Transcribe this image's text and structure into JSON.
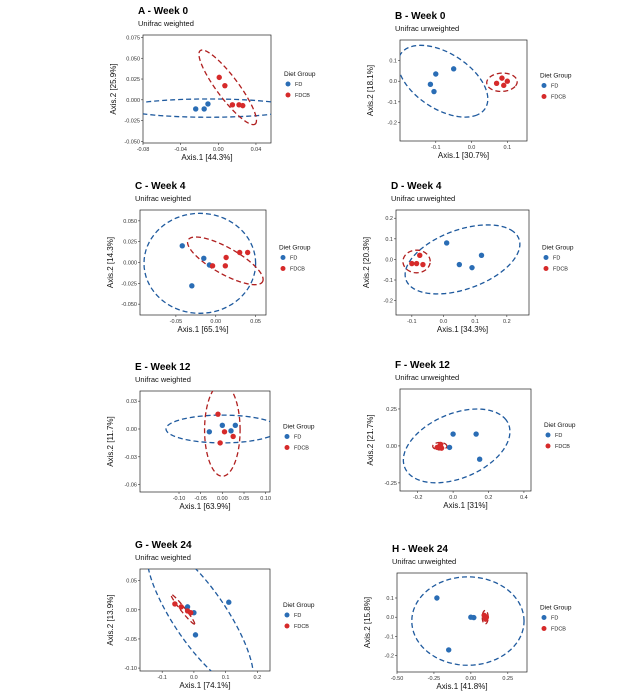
{
  "colors": {
    "FD": "#2a6db5",
    "FDCB": "#d62a2a",
    "FD_ellipse": "#1f5a9e",
    "FDCB_ellipse": "#b01f1f"
  },
  "chart_data": [
    {
      "type": "scatter",
      "title": "A - Week 0",
      "subtitle": "Unifrac weighted",
      "xlabel": "Axis.1  [44.3%]",
      "ylabel": "Axis.2  [25.9%]",
      "xlim": [
        -0.08,
        0.056
      ],
      "ylim": [
        -0.052,
        0.078
      ],
      "xticks": [
        -0.08,
        -0.04,
        0.0,
        0.04
      ],
      "xtick_labels": [
        "-0.08",
        "-0.04",
        "0.00",
        "0.04"
      ],
      "yticks": [
        -0.05,
        -0.025,
        0.0,
        0.025,
        0.05,
        0.075
      ],
      "ytick_labels": [
        "-0.050",
        "-0.025",
        "0.000",
        "0.025",
        "0.050",
        "0.075"
      ],
      "legend": {
        "title": "Diet Group",
        "items": [
          "FD",
          "FDCB"
        ],
        "position": "right"
      },
      "series": [
        {
          "name": "FD",
          "points": [
            [
              -0.024,
              -0.011
            ],
            [
              -0.015,
              -0.011
            ],
            [
              -0.011,
              -0.005
            ]
          ],
          "ellipse": {
            "cx": -0.01,
            "cy": -0.01,
            "rx": 0.09,
            "ry": 0.011,
            "angle": 0
          }
        },
        {
          "name": "FDCB",
          "points": [
            [
              0.001,
              0.027
            ],
            [
              0.007,
              0.017
            ],
            [
              0.015,
              -0.006
            ],
            [
              0.022,
              -0.006
            ],
            [
              0.026,
              -0.007
            ]
          ],
          "ellipse": {
            "cx": 0.01,
            "cy": 0.015,
            "rx": 0.053,
            "ry": 0.012,
            "angle": -57
          }
        }
      ]
    },
    {
      "type": "scatter",
      "title": "B - Week 0",
      "subtitle": "Unifrac unweighted",
      "xlabel": "Axis.1  [30.7%]",
      "ylabel": "Axis.2  [18.1%]",
      "xlim": [
        -0.2,
        0.155
      ],
      "ylim": [
        -0.29,
        0.2
      ],
      "xticks": [
        -0.1,
        0.0,
        0.1
      ],
      "xtick_labels": [
        "-0.1",
        "0.0",
        "0.1"
      ],
      "yticks": [
        -0.2,
        -0.1,
        0.0,
        0.1
      ],
      "ytick_labels": [
        "-0.2",
        "-0.1",
        "0.0",
        "0.1"
      ],
      "legend": {
        "title": "Diet Group",
        "items": [
          "FD",
          "FDCB"
        ],
        "position": "right"
      },
      "series": [
        {
          "name": "FD",
          "points": [
            [
              -0.1,
              0.035
            ],
            [
              -0.115,
              -0.015
            ],
            [
              -0.05,
              0.06
            ],
            [
              -0.105,
              -0.05
            ]
          ],
          "ellipse": {
            "cx": -0.08,
            "cy": 0.0,
            "rx": 0.19,
            "ry": 0.1,
            "angle": -62
          }
        },
        {
          "name": "FDCB",
          "points": [
            [
              0.07,
              -0.01
            ],
            [
              0.085,
              0.015
            ],
            [
              0.09,
              -0.02
            ],
            [
              0.1,
              0.0
            ]
          ],
          "ellipse": {
            "cx": 0.085,
            "cy": -0.005,
            "rx": 0.042,
            "ry": 0.045,
            "angle": -25
          }
        }
      ]
    },
    {
      "type": "scatter",
      "title": "C - Week 4",
      "subtitle": "Unifrac weighted",
      "xlabel": "Axis.1  [65.1%]",
      "ylabel": "Axis.2  [14.3%]",
      "xlim": [
        -0.095,
        0.063
      ],
      "ylim": [
        -0.063,
        0.063
      ],
      "xticks": [
        -0.05,
        0.0,
        0.05
      ],
      "xtick_labels": [
        "-0.05",
        "0.00",
        "0.05"
      ],
      "yticks": [
        -0.05,
        -0.025,
        0.0,
        0.025,
        0.05
      ],
      "ytick_labels": [
        "-0.050",
        "-0.025",
        "0.000",
        "0.025",
        "0.050"
      ],
      "legend": {
        "title": "Diet Group",
        "items": [
          "FD",
          "FDCB"
        ],
        "position": "right"
      },
      "series": [
        {
          "name": "FD",
          "points": [
            [
              -0.042,
              0.02
            ],
            [
              -0.015,
              0.005
            ],
            [
              -0.008,
              -0.003
            ],
            [
              -0.03,
              -0.028
            ]
          ],
          "ellipse": {
            "cx": -0.02,
            "cy": -0.001,
            "rx": 0.07,
            "ry": 0.06,
            "angle": 0
          }
        },
        {
          "name": "FDCB",
          "points": [
            [
              -0.004,
              -0.004
            ],
            [
              0.012,
              -0.004
            ],
            [
              0.013,
              0.006
            ],
            [
              0.03,
              0.012
            ],
            [
              0.04,
              0.012
            ]
          ],
          "ellipse": {
            "cx": 0.012,
            "cy": 0.002,
            "rx": 0.053,
            "ry": 0.016,
            "angle": -28
          }
        }
      ]
    },
    {
      "type": "scatter",
      "title": "D - Week 4",
      "subtitle": "Unifrac unweighted",
      "xlabel": "Axis.1  [34.3%]",
      "ylabel": "Axis.2  [20.3%]",
      "xlim": [
        -0.15,
        0.27
      ],
      "ylim": [
        -0.27,
        0.24
      ],
      "xticks": [
        -0.1,
        0.0,
        0.1,
        0.2
      ],
      "xtick_labels": [
        "-0.1",
        "0.0",
        "0.1",
        "0.2"
      ],
      "yticks": [
        -0.2,
        -0.1,
        0.0,
        0.1,
        0.2
      ],
      "ytick_labels": [
        "-0.2",
        "-0.1",
        "0.0",
        "0.1",
        "0.2"
      ],
      "legend": {
        "title": "Diet Group",
        "items": [
          "FD",
          "FDCB"
        ],
        "position": "right"
      },
      "series": [
        {
          "name": "FD",
          "points": [
            [
              0.01,
              0.08
            ],
            [
              0.05,
              -0.025
            ],
            [
              0.09,
              -0.04
            ],
            [
              0.12,
              0.02
            ]
          ],
          "ellipse": {
            "cx": 0.06,
            "cy": 0.0,
            "rx": 0.21,
            "ry": 0.13,
            "angle": 40
          }
        },
        {
          "name": "FDCB",
          "points": [
            [
              -0.1,
              -0.02
            ],
            [
              -0.085,
              -0.02
            ],
            [
              -0.075,
              0.02
            ],
            [
              -0.065,
              -0.025
            ]
          ],
          "ellipse": {
            "cx": -0.085,
            "cy": -0.01,
            "rx": 0.043,
            "ry": 0.055,
            "angle": 0
          }
        }
      ]
    },
    {
      "type": "scatter",
      "title": "E - Week 12",
      "subtitle": "Unifrac weighted",
      "xlabel": "Axis.1  [63.9%]",
      "ylabel": "Axis.2  [11.7%]",
      "xlim": [
        -0.19,
        0.11
      ],
      "ylim": [
        -0.068,
        0.041
      ],
      "xticks": [
        -0.1,
        -0.05,
        0.0,
        0.05,
        0.1
      ],
      "xtick_labels": [
        "-0.10",
        "-0.05",
        "0.00",
        "0.05",
        "0.10"
      ],
      "yticks": [
        -0.06,
        -0.03,
        0.0,
        0.03
      ],
      "ytick_labels": [
        "-0.06",
        "-0.03",
        "0.00",
        "0.03"
      ],
      "legend": {
        "title": "Diet Group",
        "items": [
          "FD",
          "FDCB"
        ],
        "position": "right"
      },
      "series": [
        {
          "name": "FD",
          "points": [
            [
              -0.03,
              -0.003
            ],
            [
              0.0,
              0.004
            ],
            [
              0.03,
              0.004
            ],
            [
              0.02,
              -0.002
            ]
          ],
          "ellipse": {
            "cx": 0.0,
            "cy": 0.0,
            "rx": 0.13,
            "ry": 0.015,
            "angle": 0
          }
        },
        {
          "name": "FDCB",
          "points": [
            [
              -0.01,
              0.016
            ],
            [
              -0.005,
              -0.015
            ],
            [
              0.005,
              -0.003
            ],
            [
              0.025,
              -0.008
            ]
          ],
          "ellipse": {
            "cx": 0.0,
            "cy": -0.001,
            "rx": 0.041,
            "ry": 0.05,
            "angle": 0
          }
        }
      ]
    },
    {
      "type": "scatter",
      "title": "F - Week 12",
      "subtitle": "Unifrac unweighted",
      "xlabel": "Axis.1  [31%]",
      "ylabel": "Axis.2  [21.7%]",
      "xlim": [
        -0.3,
        0.44
      ],
      "ylim": [
        -0.305,
        0.385
      ],
      "xticks": [
        -0.2,
        0.0,
        0.2,
        0.4
      ],
      "xtick_labels": [
        "-0.2",
        "0.0",
        "0.2",
        "0.4"
      ],
      "yticks": [
        -0.25,
        0.0,
        0.25
      ],
      "ytick_labels": [
        "-0.25",
        "0.00",
        "0.25"
      ],
      "legend": {
        "title": "Diet Group",
        "items": [
          "FD",
          "FDCB"
        ],
        "position": "right"
      },
      "series": [
        {
          "name": "FD",
          "points": [
            [
              0.0,
              0.08
            ],
            [
              0.13,
              0.08
            ],
            [
              -0.02,
              -0.01
            ],
            [
              0.15,
              -0.09
            ]
          ],
          "ellipse": {
            "cx": 0.02,
            "cy": 0.0,
            "rx": 0.33,
            "ry": 0.21,
            "angle": 32
          }
        },
        {
          "name": "FDCB",
          "points": [
            [
              -0.09,
              -0.01
            ],
            [
              -0.075,
              0.0
            ],
            [
              -0.065,
              -0.015
            ],
            [
              -0.07,
              0.01
            ]
          ],
          "ellipse": {
            "cx": -0.075,
            "cy": -0.002,
            "rx": 0.04,
            "ry": 0.025,
            "angle": 0
          }
        }
      ]
    },
    {
      "type": "scatter",
      "title": "G - Week 24",
      "subtitle": "Unifrac weighted",
      "xlabel": "Axis.1  [74.1%]",
      "ylabel": "Axis.2  [13.9%]",
      "xlim": [
        -0.17,
        0.24
      ],
      "ylim": [
        -0.105,
        0.07
      ],
      "xticks": [
        -0.1,
        0.0,
        0.1,
        0.2
      ],
      "xtick_labels": [
        "-0.1",
        "0.0",
        "0.1",
        "0.2"
      ],
      "yticks": [
        -0.1,
        -0.05,
        0.0,
        0.05
      ],
      "ytick_labels": [
        "-0.10",
        "-0.05",
        "0.00",
        "0.05"
      ],
      "legend": {
        "title": "Diet Group",
        "items": [
          "FD",
          "FDCB"
        ],
        "position": "right"
      },
      "series": [
        {
          "name": "FD",
          "points": [
            [
              0.11,
              0.013
            ],
            [
              -0.02,
              0.005
            ],
            [
              0.0,
              -0.005
            ],
            [
              0.005,
              -0.043
            ]
          ],
          "ellipse": {
            "cx": 0.02,
            "cy": -0.012,
            "rx": 0.2,
            "ry": 0.062,
            "angle": -35
          }
        },
        {
          "name": "FDCB",
          "points": [
            [
              -0.06,
              0.01
            ],
            [
              -0.04,
              0.005
            ],
            [
              -0.02,
              -0.002
            ],
            [
              -0.01,
              -0.005
            ]
          ],
          "ellipse": {
            "cx": -0.035,
            "cy": 0.001,
            "rx": 0.045,
            "ry": 0.005,
            "angle": -34
          }
        }
      ]
    },
    {
      "type": "scatter",
      "title": "H - Week 24",
      "subtitle": "Unifrac unweighted",
      "xlabel": "Axis.1  [41.8%]",
      "ylabel": "Axis.2  [15.8%]",
      "xlim": [
        -0.5,
        0.38
      ],
      "ylim": [
        -0.285,
        0.23
      ],
      "xticks": [
        -0.5,
        -0.25,
        0.0,
        0.25
      ],
      "xtick_labels": [
        "-0.50",
        "-0.25",
        "0.00",
        "0.25"
      ],
      "yticks": [
        -0.2,
        -0.1,
        0.0,
        0.1
      ],
      "ytick_labels": [
        "-0.2",
        "-0.1",
        "0.0",
        "0.1"
      ],
      "legend": {
        "title": "Diet Group",
        "items": [
          "FD",
          "FDCB"
        ],
        "position": "right"
      },
      "series": [
        {
          "name": "FD",
          "points": [
            [
              -0.23,
              0.1
            ],
            [
              -0.15,
              -0.17
            ],
            [
              0.02,
              -0.002
            ],
            [
              0.0,
              0.0
            ]
          ],
          "ellipse": {
            "cx": -0.02,
            "cy": -0.02,
            "rx": 0.38,
            "ry": 0.23,
            "angle": 0
          }
        },
        {
          "name": "FDCB",
          "points": [
            [
              0.09,
              0.01
            ],
            [
              0.1,
              -0.01
            ],
            [
              0.095,
              0.005
            ],
            [
              0.105,
              0.0
            ]
          ],
          "ellipse": {
            "cx": 0.097,
            "cy": 0.0,
            "rx": 0.02,
            "ry": 0.035,
            "angle": 0
          }
        }
      ]
    }
  ]
}
